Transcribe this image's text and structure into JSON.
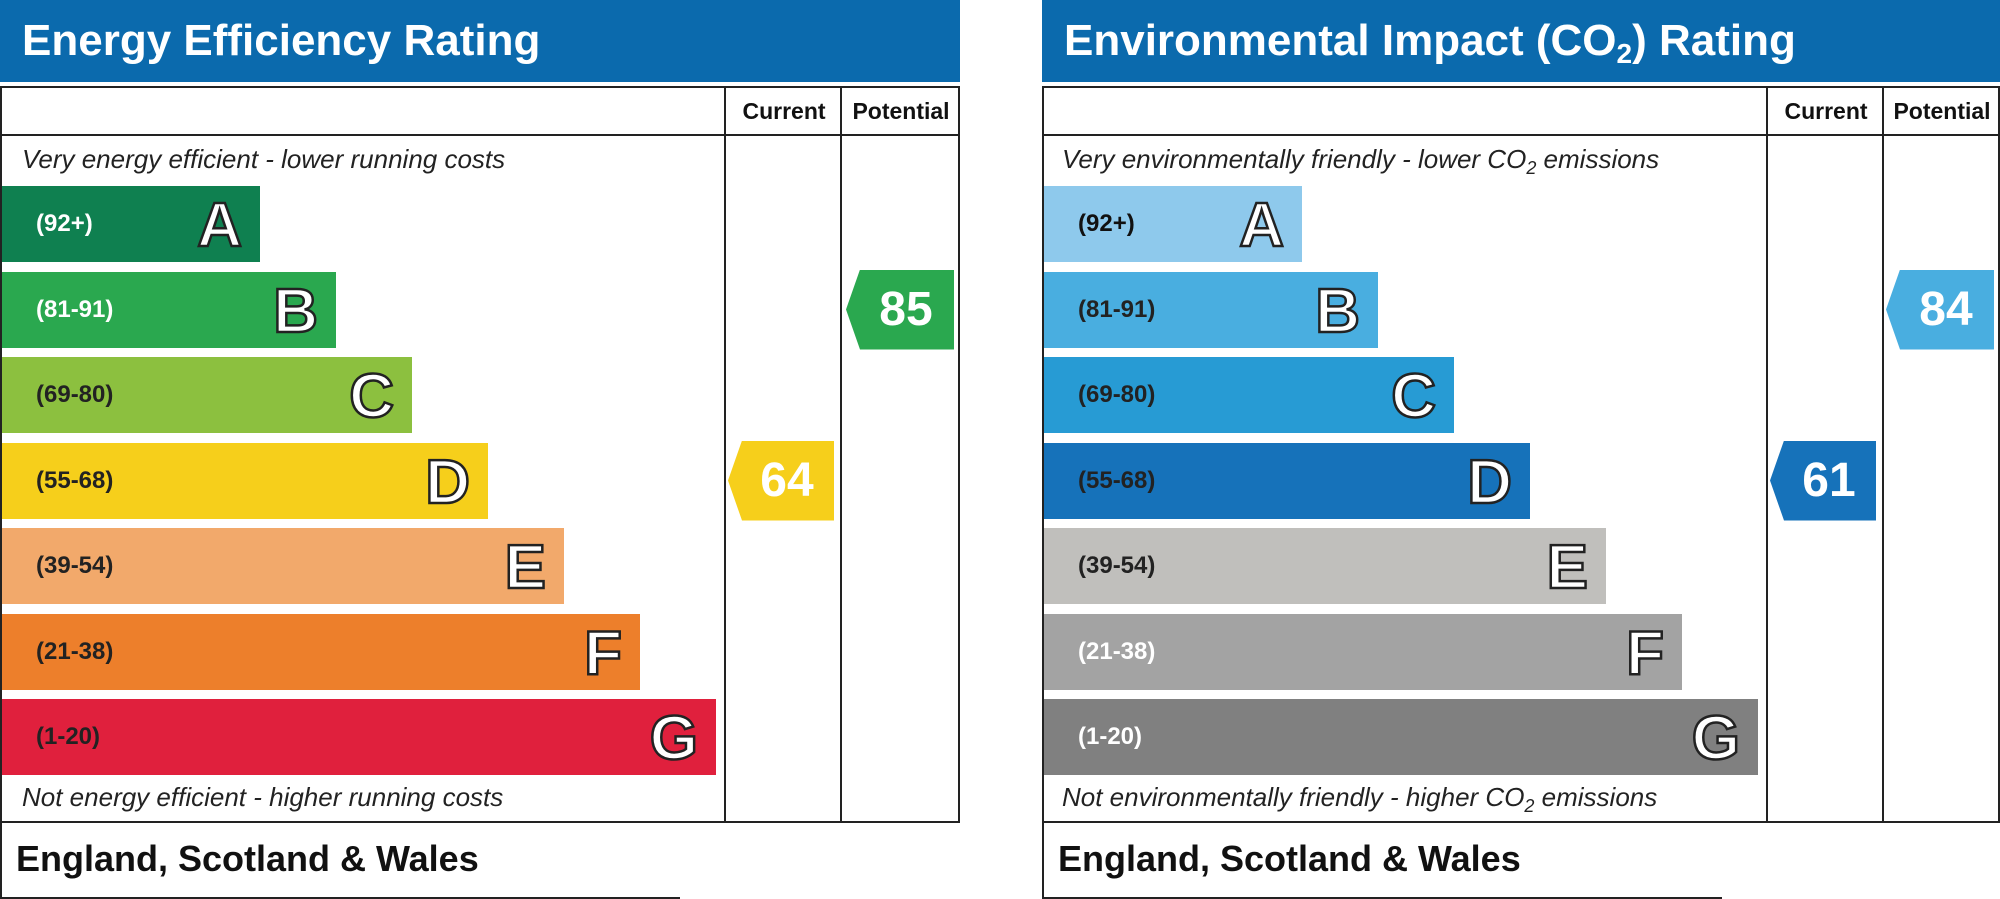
{
  "chart_data": [
    {
      "type": "bar",
      "title": "Energy Efficiency Rating",
      "top_caption": "Very energy efficient - lower running costs",
      "bottom_caption": "Not energy efficient - higher running costs",
      "columns": [
        "Current",
        "Potential"
      ],
      "footer": "England, Scotland & Wales",
      "bands": [
        {
          "range": "(92+)",
          "letter": "A",
          "color": "#0f8050",
          "text_color": "#ffffff"
        },
        {
          "range": "(81-91)",
          "letter": "B",
          "color": "#2aa84f",
          "text_color": "#ffffff"
        },
        {
          "range": "(69-80)",
          "letter": "C",
          "color": "#8cc03f",
          "text_color": "#222222"
        },
        {
          "range": "(55-68)",
          "letter": "D",
          "color": "#f6cf1b",
          "text_color": "#222222"
        },
        {
          "range": "(39-54)",
          "letter": "E",
          "color": "#f2a96b",
          "text_color": "#222222"
        },
        {
          "range": "(21-38)",
          "letter": "F",
          "color": "#ed7f2b",
          "text_color": "#222222"
        },
        {
          "range": "(1-20)",
          "letter": "G",
          "color": "#e0203d",
          "text_color": "#222222"
        }
      ],
      "current": {
        "value": "64",
        "band": "D",
        "color": "#f6cf1b"
      },
      "potential": {
        "value": "85",
        "band": "B",
        "color": "#2aa84f"
      }
    },
    {
      "type": "bar",
      "title": "Environmental Impact (CO",
      "title_sub": "2",
      "title_end": ") Rating",
      "top_caption": "Very environmentally friendly - lower CO",
      "top_caption_end": " emissions",
      "bottom_caption": "Not environmentally friendly - higher CO",
      "bottom_caption_end": " emissions",
      "caption_sub": "2",
      "columns": [
        "Current",
        "Potential"
      ],
      "footer": "England, Scotland & Wales",
      "bands": [
        {
          "range": "(92+)",
          "letter": "A",
          "color": "#8ec9ec",
          "text_color": "#111111"
        },
        {
          "range": "(81-91)",
          "letter": "B",
          "color": "#49aee0",
          "text_color": "#222222"
        },
        {
          "range": "(69-80)",
          "letter": "C",
          "color": "#279bd4",
          "text_color": "#222222"
        },
        {
          "range": "(55-68)",
          "letter": "D",
          "color": "#1672ba",
          "text_color": "#222222"
        },
        {
          "range": "(39-54)",
          "letter": "E",
          "color": "#c0bfbc",
          "text_color": "#222222"
        },
        {
          "range": "(21-38)",
          "letter": "F",
          "color": "#a3a3a3",
          "text_color": "#ffffff"
        },
        {
          "range": "(1-20)",
          "letter": "G",
          "color": "#808080",
          "text_color": "#ffffff"
        }
      ],
      "current": {
        "value": "61",
        "band": "D",
        "color": "#1672ba"
      },
      "potential": {
        "value": "84",
        "band": "B",
        "color": "#49aee0"
      }
    }
  ]
}
